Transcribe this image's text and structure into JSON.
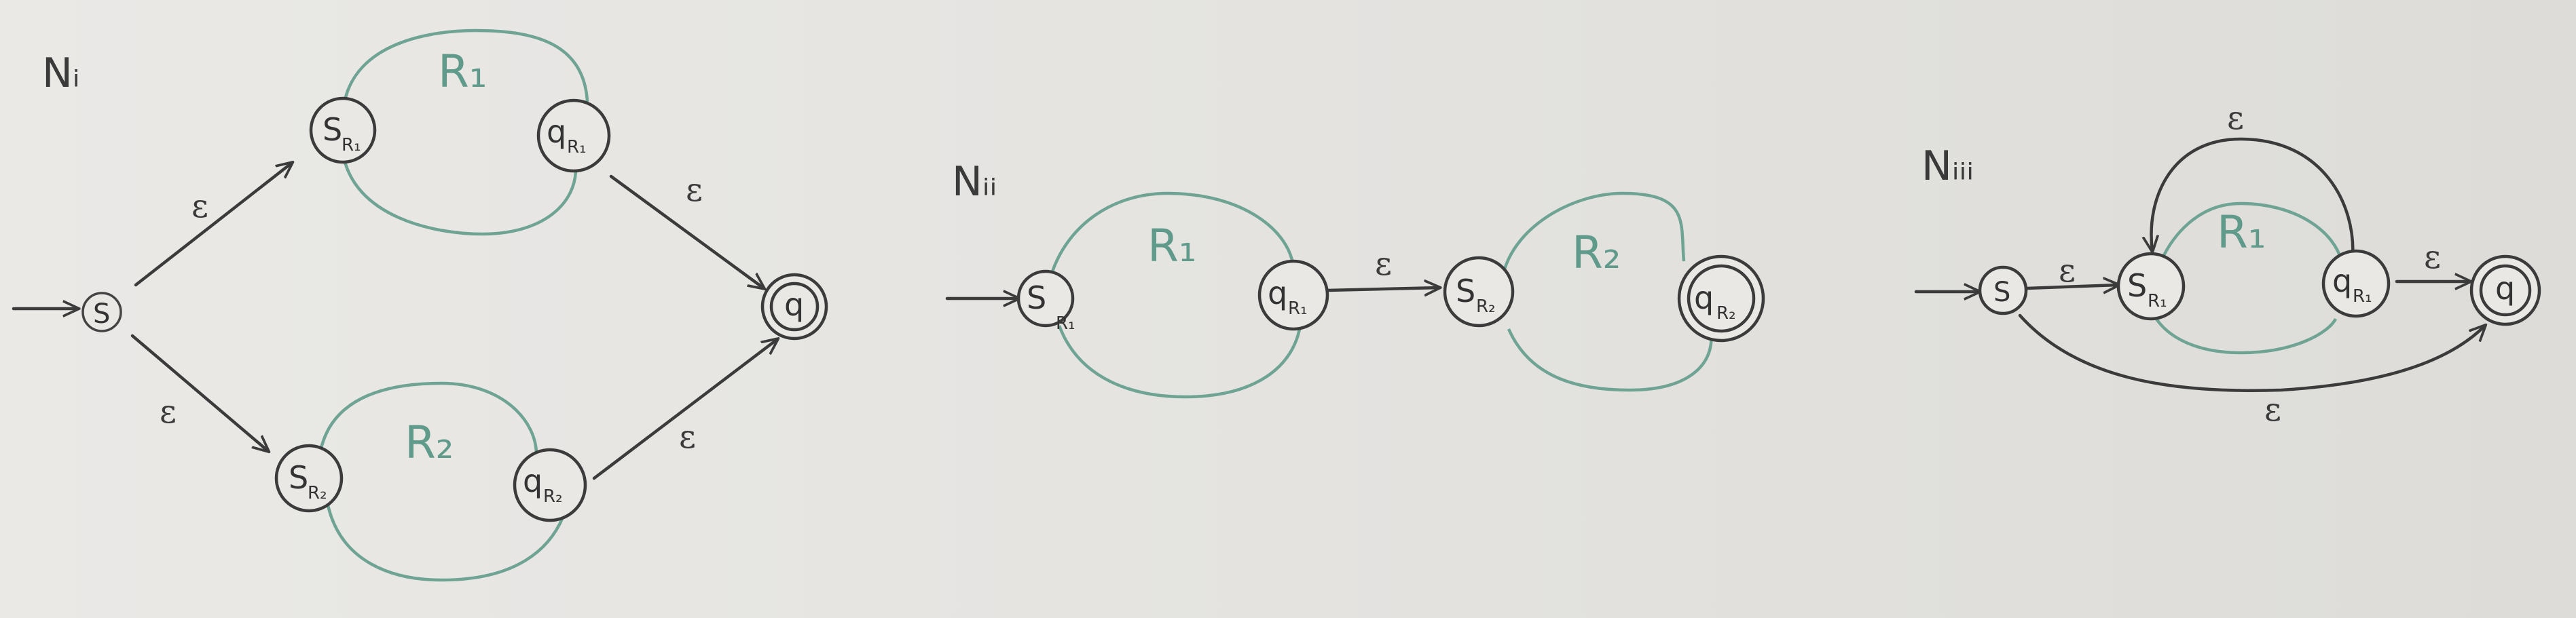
{
  "diagrams": {
    "ni": {
      "title": "Nᵢ",
      "region1": "R₁",
      "region2": "R₂",
      "start_state": {
        "main": "S",
        "sub": ""
      },
      "s_r1": {
        "main": "S",
        "sub": "R₁"
      },
      "q_r1": {
        "main": "q",
        "sub": "R₁"
      },
      "s_r2": {
        "main": "S",
        "sub": "R₂"
      },
      "q_r2": {
        "main": "q",
        "sub": "R₂"
      },
      "accept_state": {
        "main": "q",
        "sub": ""
      },
      "eps_top_left": "ε",
      "eps_top_right": "ε",
      "eps_bottom_left": "ε",
      "eps_bottom_right": "ε"
    },
    "nii": {
      "title": "Nᵢᵢ",
      "region1": "R₁",
      "region2": "R₂",
      "s_r1": {
        "main": "S",
        "sub": "R₁"
      },
      "q_r1": {
        "main": "q",
        "sub": "R₁"
      },
      "s_r2": {
        "main": "S",
        "sub": "R₂"
      },
      "q_r2": {
        "main": "q",
        "sub": "R₂"
      },
      "eps_middle": "ε"
    },
    "niii": {
      "title": "Nᵢᵢᵢ",
      "region1": "R₁",
      "start_state": {
        "main": "S",
        "sub": ""
      },
      "s_r1": {
        "main": "S",
        "sub": "R₁"
      },
      "q_r1": {
        "main": "q",
        "sub": "R₁"
      },
      "accept_state": {
        "main": "q",
        "sub": ""
      },
      "eps_to_sr1": "ε",
      "eps_loop": "ε",
      "eps_to_accept": "ε",
      "eps_bypass": "ε"
    }
  },
  "colors": {
    "ink": "#3b3b3b",
    "region": "#6fa394",
    "paper": "#e6e5e2"
  }
}
